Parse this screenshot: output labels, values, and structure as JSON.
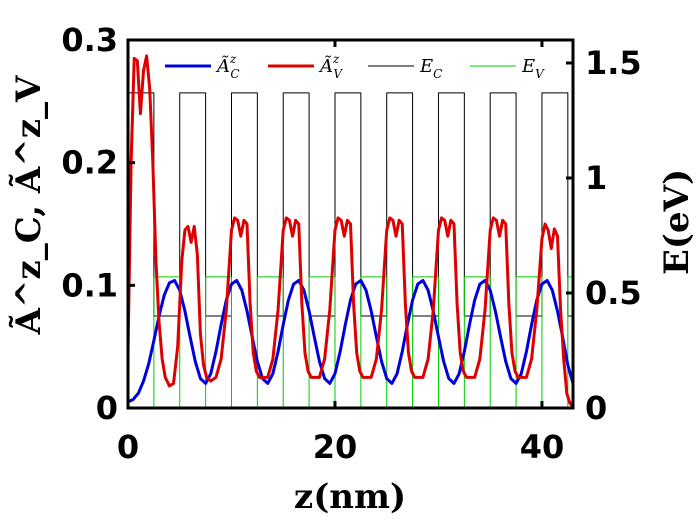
{
  "chart_data": {
    "type": "line",
    "xlabel": "z(nm)",
    "ylabel_left": "Ã^z_C, Ã^z_V",
    "ylabel_right": "E(eV)",
    "xlim": [
      0,
      43
    ],
    "ylim_left": [
      0,
      0.3
    ],
    "ylim_right": [
      0,
      1.6
    ],
    "x_ticks": [
      0,
      20,
      40
    ],
    "x_tick_labels": [
      "0",
      "20",
      "40"
    ],
    "y_left_ticks": [
      0,
      0.1,
      0.2,
      0.3
    ],
    "y_left_tick_labels": [
      "0",
      "0.1",
      "0.2",
      "0.3"
    ],
    "y_right_ticks": [
      0,
      0.5,
      1,
      1.5
    ],
    "y_right_tick_labels": [
      "0",
      "0.5",
      "1",
      "1.5"
    ],
    "legend_position": "top",
    "grid": false,
    "series": [
      {
        "name": "Ã^z_C",
        "axis": "left",
        "color": "#0000dd",
        "x": [
          0,
          0.5,
          1,
          1.5,
          2,
          2.5,
          3,
          3.5,
          4,
          4.5,
          5,
          5.5,
          6,
          6.5,
          7,
          7.5,
          8,
          8.5,
          9,
          9.5,
          10,
          10.5,
          11,
          11.5,
          12,
          12.5,
          13,
          13.5,
          14,
          14.5,
          15,
          15.5,
          16,
          16.5,
          17,
          17.5,
          18,
          18.5,
          19,
          19.5,
          20,
          20.5,
          21,
          21.5,
          22,
          22.5,
          23,
          23.5,
          24,
          24.5,
          25,
          25.5,
          26,
          26.5,
          27,
          27.5,
          28,
          28.5,
          29,
          29.5,
          30,
          30.5,
          31,
          31.5,
          32,
          32.5,
          33,
          33.5,
          34,
          34.5,
          35,
          35.5,
          36,
          36.5,
          37,
          37.5,
          38,
          38.5,
          39,
          39.5,
          40,
          40.5,
          41,
          41.5,
          42,
          42.5,
          43
        ],
        "y": [
          0.005,
          0.007,
          0.012,
          0.022,
          0.036,
          0.055,
          0.075,
          0.092,
          0.102,
          0.104,
          0.096,
          0.079,
          0.058,
          0.038,
          0.024,
          0.02,
          0.028,
          0.046,
          0.068,
          0.088,
          0.101,
          0.104,
          0.096,
          0.079,
          0.058,
          0.038,
          0.024,
          0.02,
          0.028,
          0.046,
          0.068,
          0.088,
          0.101,
          0.104,
          0.096,
          0.079,
          0.058,
          0.038,
          0.024,
          0.02,
          0.028,
          0.046,
          0.068,
          0.088,
          0.101,
          0.104,
          0.096,
          0.079,
          0.058,
          0.038,
          0.024,
          0.02,
          0.028,
          0.046,
          0.068,
          0.088,
          0.101,
          0.104,
          0.096,
          0.079,
          0.058,
          0.038,
          0.024,
          0.02,
          0.028,
          0.046,
          0.068,
          0.088,
          0.101,
          0.104,
          0.096,
          0.079,
          0.058,
          0.038,
          0.024,
          0.02,
          0.028,
          0.046,
          0.068,
          0.088,
          0.101,
          0.104,
          0.096,
          0.079,
          0.058,
          0.035,
          0.02
        ]
      },
      {
        "name": "Ã^z_V",
        "axis": "left",
        "color": "#dd0000",
        "x": [
          0,
          0.3,
          0.6,
          0.9,
          1.2,
          1.5,
          1.8,
          2.1,
          2.4,
          2.7,
          3,
          3.3,
          3.6,
          4,
          4.4,
          4.8,
          5.2,
          5.5,
          5.8,
          6.1,
          6.4,
          6.7,
          7,
          7.3,
          7.6,
          8,
          8.5,
          9,
          9.5,
          10,
          10.3,
          10.6,
          10.9,
          11.2,
          11.5,
          11.8,
          12.1,
          12.4,
          12.7,
          13,
          13.5,
          14,
          14.5,
          15,
          15.3,
          15.6,
          15.9,
          16.2,
          16.5,
          16.8,
          17.1,
          17.4,
          17.7,
          18,
          18.5,
          19,
          19.5,
          20,
          20.3,
          20.6,
          20.9,
          21.2,
          21.5,
          21.8,
          22.1,
          22.4,
          22.7,
          23,
          23.5,
          24,
          24.5,
          25,
          25.3,
          25.6,
          25.9,
          26.2,
          26.5,
          26.8,
          27.1,
          27.4,
          27.7,
          28,
          28.5,
          29,
          29.5,
          30,
          30.3,
          30.6,
          30.9,
          31.2,
          31.5,
          31.8,
          32.1,
          32.4,
          32.7,
          33,
          33.5,
          34,
          34.5,
          35,
          35.3,
          35.6,
          35.9,
          36.2,
          36.5,
          36.8,
          37.1,
          37.4,
          37.7,
          38,
          38.5,
          39,
          39.5,
          40,
          40.3,
          40.6,
          40.9,
          41.2,
          41.5,
          41.8,
          42.1,
          42.4,
          42.7,
          43
        ],
        "y": [
          0.045,
          0.2,
          0.285,
          0.283,
          0.24,
          0.275,
          0.287,
          0.26,
          0.2,
          0.12,
          0.07,
          0.04,
          0.025,
          0.018,
          0.02,
          0.05,
          0.12,
          0.145,
          0.148,
          0.135,
          0.148,
          0.125,
          0.06,
          0.035,
          0.025,
          0.022,
          0.025,
          0.04,
          0.08,
          0.145,
          0.155,
          0.153,
          0.14,
          0.153,
          0.15,
          0.085,
          0.045,
          0.03,
          0.025,
          0.025,
          0.025,
          0.04,
          0.08,
          0.145,
          0.155,
          0.153,
          0.14,
          0.153,
          0.15,
          0.085,
          0.045,
          0.03,
          0.025,
          0.025,
          0.025,
          0.04,
          0.08,
          0.145,
          0.155,
          0.153,
          0.14,
          0.153,
          0.15,
          0.085,
          0.045,
          0.03,
          0.025,
          0.025,
          0.025,
          0.04,
          0.08,
          0.145,
          0.155,
          0.153,
          0.14,
          0.153,
          0.15,
          0.085,
          0.045,
          0.03,
          0.025,
          0.025,
          0.025,
          0.04,
          0.08,
          0.145,
          0.155,
          0.153,
          0.14,
          0.153,
          0.15,
          0.085,
          0.045,
          0.03,
          0.025,
          0.025,
          0.025,
          0.04,
          0.08,
          0.145,
          0.155,
          0.153,
          0.14,
          0.153,
          0.15,
          0.085,
          0.045,
          0.03,
          0.025,
          0.025,
          0.025,
          0.04,
          0.08,
          0.138,
          0.15,
          0.145,
          0.13,
          0.146,
          0.14,
          0.08,
          0.04,
          0.012,
          0.004,
          0.001
        ]
      },
      {
        "name": "E_C",
        "axis": "right",
        "color": "#000000",
        "x": [
          0,
          2.5,
          2.5,
          3.0,
          3.0,
          5.0,
          5.0,
          5.5,
          5.5,
          7.5,
          7.5,
          8.0,
          8.0,
          10.0,
          10.0,
          10.5,
          10.5,
          12.5,
          12.5,
          13.0,
          13.0,
          15.0,
          15.0,
          15.5,
          15.5,
          17.5,
          17.5,
          18.0,
          18.0,
          20.0,
          20.0,
          20.5,
          20.5,
          22.5,
          22.5,
          23.0,
          23.0,
          25.0,
          25.0,
          25.5,
          25.5,
          27.5,
          27.5,
          28.0,
          28.0,
          30.0,
          30.0,
          30.5,
          30.5,
          32.5,
          32.5,
          33.0,
          33.0,
          35.0,
          35.0,
          35.5,
          35.5,
          37.5,
          37.5,
          38.0,
          38.0,
          40.0,
          40.0,
          40.5,
          40.5,
          42.5,
          42.5,
          43
        ],
        "y": [
          1.37,
          1.37,
          0.4,
          0.4,
          0.4,
          0.4,
          1.37,
          1.37,
          1.37,
          1.37,
          0.4,
          0.4,
          0.4,
          0.4,
          1.37,
          1.37,
          1.37,
          1.37,
          0.4,
          0.4,
          0.4,
          0.4,
          1.37,
          1.37,
          1.37,
          1.37,
          0.4,
          0.4,
          0.4,
          0.4,
          1.37,
          1.37,
          1.37,
          1.37,
          0.4,
          0.4,
          0.4,
          0.4,
          1.37,
          1.37,
          1.37,
          1.37,
          0.4,
          0.4,
          0.4,
          0.4,
          1.37,
          1.37,
          1.37,
          1.37,
          0.4,
          0.4,
          0.4,
          0.4,
          1.37,
          1.37,
          1.37,
          1.37,
          0.4,
          0.4,
          0.4,
          0.4,
          1.37,
          1.37,
          1.37,
          1.37,
          0.4,
          0.4
        ]
      },
      {
        "name": "E_V",
        "axis": "right",
        "color": "#00cc00",
        "x": [
          0,
          2.5,
          2.5,
          3.0,
          3.0,
          5.0,
          5.0,
          5.5,
          5.5,
          7.5,
          7.5,
          8.0,
          8.0,
          10.0,
          10.0,
          10.5,
          10.5,
          12.5,
          12.5,
          13.0,
          13.0,
          15.0,
          15.0,
          15.5,
          15.5,
          17.5,
          17.5,
          18.0,
          18.0,
          20.0,
          20.0,
          20.5,
          20.5,
          22.5,
          22.5,
          23.0,
          23.0,
          25.0,
          25.0,
          25.5,
          25.5,
          27.5,
          27.5,
          28.0,
          28.0,
          30.0,
          30.0,
          30.5,
          30.5,
          32.5,
          32.5,
          33.0,
          33.0,
          35.0,
          35.0,
          35.5,
          35.5,
          37.5,
          37.5,
          38.0,
          38.0,
          40.0,
          40.0,
          40.5,
          40.5,
          42.5,
          42.5,
          43
        ],
        "y": [
          0,
          0,
          0.57,
          0.57,
          0.57,
          0.57,
          0,
          0,
          0,
          0,
          0.57,
          0.57,
          0.57,
          0.57,
          0,
          0,
          0,
          0,
          0.57,
          0.57,
          0.57,
          0.57,
          0,
          0,
          0,
          0,
          0.57,
          0.57,
          0.57,
          0.57,
          0,
          0,
          0,
          0,
          0.57,
          0.57,
          0.57,
          0.57,
          0,
          0,
          0,
          0,
          0.57,
          0.57,
          0.57,
          0.57,
          0,
          0,
          0,
          0,
          0.57,
          0.57,
          0.57,
          0.57,
          0,
          0,
          0,
          0,
          0.57,
          0.57,
          0.57,
          0.57,
          0,
          0,
          0,
          0,
          0.57,
          0.57
        ]
      }
    ],
    "legend": [
      {
        "base": "Ã",
        "sup": "z",
        "sub": "C",
        "color": "#0000dd"
      },
      {
        "base": "Ã",
        "sup": "z",
        "sub": "V",
        "color": "#dd0000"
      },
      {
        "base": "E",
        "sup": "",
        "sub": "C",
        "color": "#000000"
      },
      {
        "base": "E",
        "sup": "",
        "sub": "V",
        "color": "#00cc00"
      }
    ]
  }
}
